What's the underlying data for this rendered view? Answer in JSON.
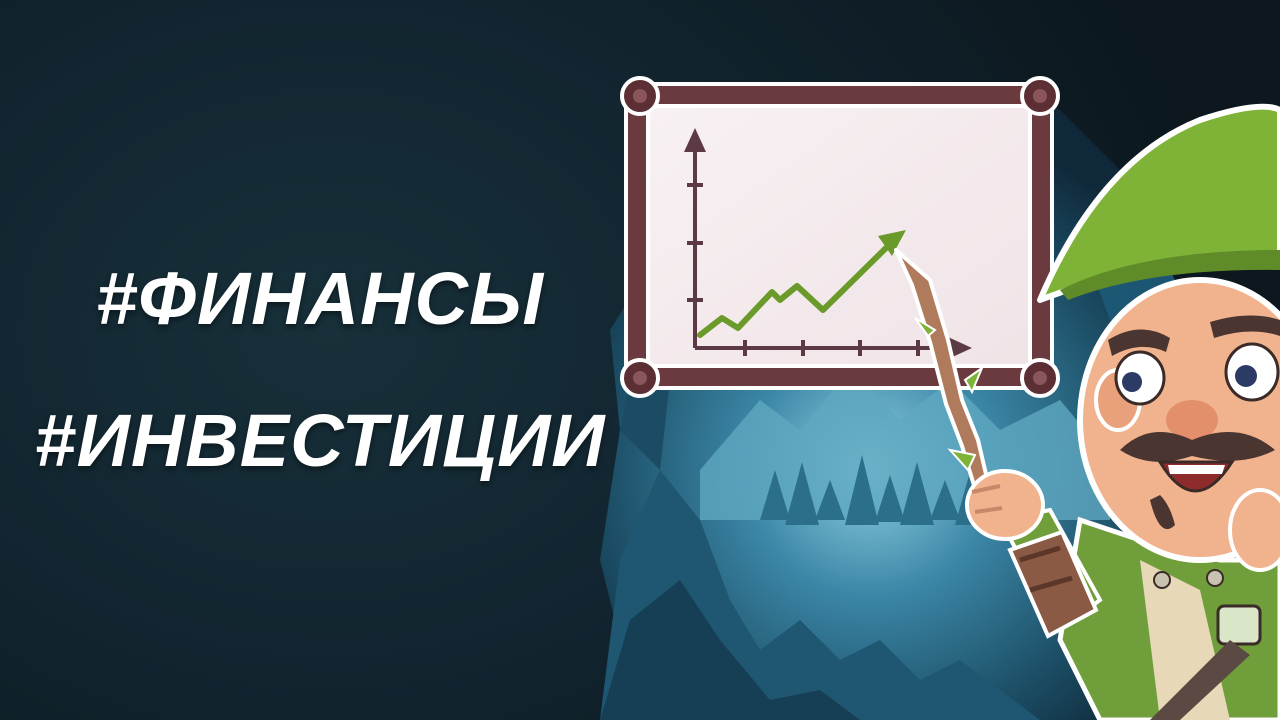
{
  "hashtags": {
    "finance": "#ФИНАНСЫ",
    "investments": "#ИНВЕСТИЦИИ"
  },
  "illustration": {
    "board_icon": "chart-board-icon",
    "character_icon": "ranger-mascot-icon",
    "background_icon": "cave-forest-icon",
    "trend": "rising",
    "colors": {
      "background": "#0f1c24",
      "frame": "#6b3a3f",
      "board": "#f6eef0",
      "trend_line": "#6a9a2a",
      "hat": "#7fb338",
      "cave_glow": "#3b86a6"
    }
  }
}
